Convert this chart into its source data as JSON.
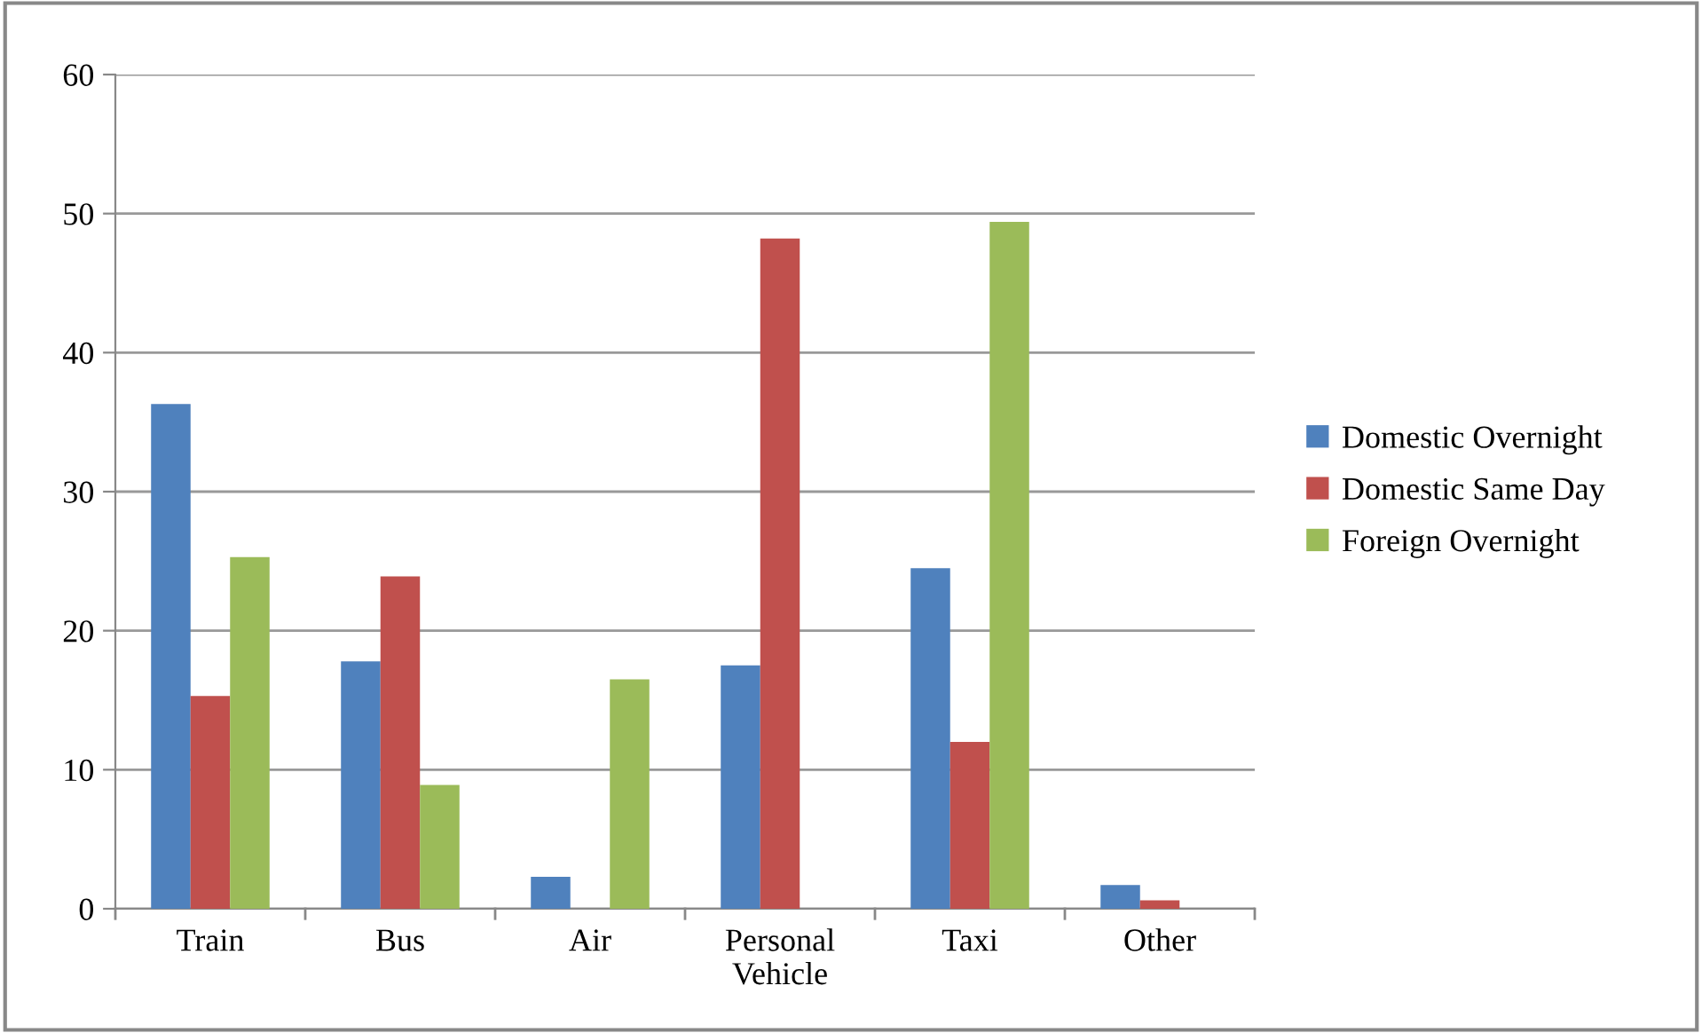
{
  "chart_data": {
    "type": "bar",
    "categories": [
      "Train",
      "Bus",
      "Air",
      "Personal\nVehicle",
      "Taxi",
      "Other"
    ],
    "series": [
      {
        "name": "Domestic Overnight",
        "color": "#4f81bd",
        "values": [
          36.3,
          17.8,
          2.3,
          17.5,
          24.5,
          1.7
        ]
      },
      {
        "name": "Domestic Same Day",
        "color": "#c0504d",
        "values": [
          15.3,
          23.9,
          0,
          48.2,
          12.0,
          0.6
        ]
      },
      {
        "name": "Foreign Overnight",
        "color": "#9bbb59",
        "values": [
          25.3,
          8.9,
          16.5,
          0,
          49.4,
          0
        ]
      }
    ],
    "ylim": [
      0,
      60
    ],
    "yticks": [
      0,
      10,
      20,
      30,
      40,
      50,
      60
    ],
    "grid": "y",
    "legend": "right"
  }
}
